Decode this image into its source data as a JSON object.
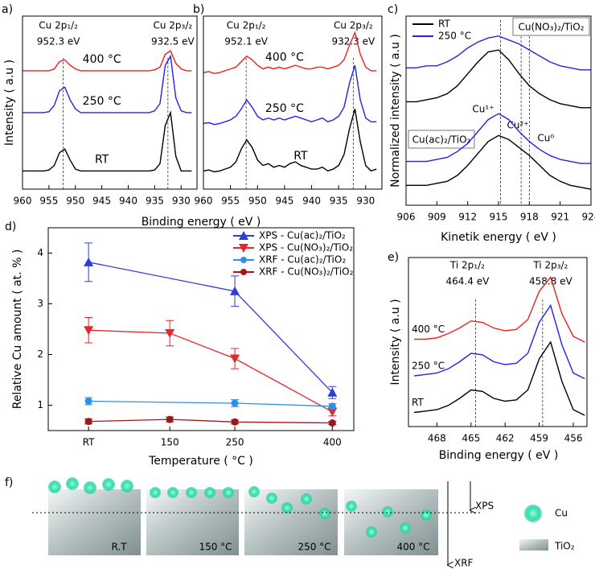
{
  "chart_data": [
    {
      "type": "line",
      "panel": "a)",
      "ylabel": "Intensity ( a.u )",
      "xlabel": "Binding energy ( eV )",
      "xlim": [
        960,
        927
      ],
      "xticks": [
        960,
        955,
        950,
        945,
        940,
        935,
        930
      ],
      "ylim": [
        0,
        9.5
      ],
      "x": [
        960,
        959,
        958,
        957,
        956,
        955,
        954,
        953,
        952,
        951,
        950,
        949,
        948,
        947,
        946,
        945,
        944,
        943,
        942,
        941,
        940,
        939,
        938,
        937,
        936,
        935,
        934,
        933,
        932,
        931,
        930,
        929,
        928
      ],
      "series": [
        {
          "name": "RT",
          "color": "#000000",
          "values": [
            1.0,
            1.0,
            1.0,
            1.0,
            1.0,
            1.05,
            1.3,
            2.0,
            2.2,
            1.6,
            1.1,
            1.0,
            1.0,
            1.0,
            1.0,
            1.0,
            1.0,
            1.0,
            1.0,
            1.0,
            1.0,
            1.0,
            1.0,
            1.0,
            1.0,
            1.05,
            1.4,
            3.5,
            4.2,
            1.8,
            1.0,
            1.0,
            1.0
          ]
        },
        {
          "name": "250 °C",
          "color": "#2323e8",
          "values": [
            4.2,
            4.2,
            4.2,
            4.2,
            4.2,
            4.25,
            4.6,
            5.4,
            5.6,
            4.9,
            4.4,
            4.2,
            4.2,
            4.2,
            4.2,
            4.2,
            4.2,
            4.2,
            4.2,
            4.2,
            4.2,
            4.2,
            4.2,
            4.2,
            4.2,
            4.3,
            4.7,
            6.8,
            7.3,
            5.0,
            4.3,
            4.2,
            4.2
          ]
        },
        {
          "name": "400 °C",
          "color": "#ee2020",
          "values": [
            6.5,
            6.5,
            6.5,
            6.5,
            6.5,
            6.5,
            6.6,
            7.0,
            7.1,
            6.8,
            6.6,
            6.5,
            6.5,
            6.5,
            6.5,
            6.5,
            6.5,
            6.5,
            6.5,
            6.5,
            6.5,
            6.5,
            6.5,
            6.5,
            6.5,
            6.55,
            6.7,
            7.4,
            7.6,
            6.9,
            6.6,
            6.5,
            6.5
          ]
        }
      ],
      "annotations": [
        {
          "x": 952.3,
          "title": "Cu 2p₁/₂",
          "label": "952.3 eV"
        },
        {
          "x": 932.5,
          "title": "Cu 2p₃/₂",
          "label": "932.5 eV"
        }
      ]
    },
    {
      "type": "line",
      "panel": "b)",
      "xlim": [
        960,
        927
      ],
      "xticks": [
        960,
        955,
        950,
        945,
        940,
        935,
        930
      ],
      "ylim": [
        0,
        9.5
      ],
      "x": [
        960,
        959,
        958,
        957,
        956,
        955,
        954,
        953,
        952,
        951,
        950,
        949,
        948,
        947,
        946,
        945,
        944,
        943,
        942,
        941,
        940,
        939,
        938,
        937,
        936,
        935,
        934,
        933,
        932,
        931,
        930,
        929,
        928
      ],
      "series": [
        {
          "name": "RT",
          "color": "#000000",
          "values": [
            1.0,
            1.05,
            0.95,
            1.0,
            1.1,
            1.2,
            1.5,
            2.2,
            2.7,
            2.3,
            1.6,
            1.3,
            1.4,
            1.2,
            1.3,
            1.2,
            1.4,
            1.5,
            1.3,
            1.2,
            1.1,
            1.1,
            1.2,
            1.0,
            1.1,
            1.3,
            1.9,
            3.3,
            4.4,
            2.6,
            1.3,
            1.0,
            1.1
          ]
        },
        {
          "name": "250 °C",
          "color": "#2323e8",
          "values": [
            3.6,
            3.65,
            3.55,
            3.6,
            3.7,
            3.8,
            4.0,
            4.4,
            4.9,
            4.5,
            4.0,
            3.8,
            3.9,
            3.8,
            3.9,
            3.8,
            3.9,
            4.0,
            3.9,
            3.8,
            3.7,
            3.8,
            3.9,
            3.7,
            3.8,
            4.0,
            4.5,
            5.8,
            6.8,
            4.9,
            3.9,
            3.7,
            3.7
          ]
        },
        {
          "name": "400 °C",
          "color": "#ee2020",
          "values": [
            6.4,
            6.45,
            6.35,
            6.4,
            6.5,
            6.6,
            6.7,
            7.0,
            7.3,
            7.1,
            6.8,
            6.6,
            6.7,
            6.6,
            6.7,
            6.6,
            6.7,
            6.8,
            6.7,
            6.6,
            6.6,
            6.7,
            6.7,
            6.6,
            6.7,
            6.8,
            7.1,
            7.9,
            8.6,
            7.4,
            6.7,
            6.5,
            6.5
          ]
        }
      ],
      "annotations": [
        {
          "x": 952.1,
          "title": "Cu 2p₁/₂",
          "label": "952.1 eV"
        },
        {
          "x": 932.3,
          "title": "Cu 2p₃/₂",
          "label": "932.3 eV"
        }
      ]
    },
    {
      "type": "line",
      "panel": "c)",
      "ylabel": "Normalized intensity ( a.u )",
      "xlabel": "Kinetik energy ( eV )",
      "xlim": [
        906,
        924
      ],
      "xticks": [
        906,
        909,
        912,
        915,
        918,
        921,
        924
      ],
      "ylim": [
        0,
        9.5
      ],
      "legend": "upper left",
      "x": [
        906,
        907,
        908,
        909,
        910,
        911,
        912,
        913,
        914,
        915,
        916,
        917,
        918,
        919,
        920,
        921,
        922,
        923,
        924
      ],
      "series": [
        {
          "name": "RT",
          "color": "#000000",
          "values": [
            1.0,
            1.0,
            1.0,
            1.1,
            1.2,
            1.5,
            2.0,
            2.6,
            3.2,
            3.5,
            3.3,
            2.9,
            2.5,
            2.0,
            1.5,
            1.2,
            1.0,
            0.9,
            0.8
          ]
        },
        {
          "name": "250 °C",
          "color": "#2323e8",
          "values": [
            2.2,
            2.2,
            2.2,
            2.3,
            2.4,
            2.7,
            3.1,
            3.7,
            4.3,
            4.6,
            4.3,
            3.7,
            3.2,
            2.8,
            2.5,
            2.3,
            2.2,
            2.1,
            2.1
          ]
        },
        {
          "name": "RT",
          "color": "#000000",
          "values": [
            5.2,
            5.2,
            5.3,
            5.4,
            5.6,
            6.0,
            6.6,
            7.2,
            7.7,
            7.8,
            7.3,
            6.6,
            6.0,
            5.6,
            5.3,
            5.1,
            5.0,
            4.9,
            4.9
          ]
        },
        {
          "name": "250 °C",
          "color": "#2323e8",
          "values": [
            6.9,
            6.9,
            7.0,
            7.0,
            7.2,
            7.5,
            7.9,
            8.2,
            8.4,
            8.5,
            8.3,
            8.1,
            7.8,
            7.5,
            7.2,
            7.0,
            6.9,
            6.8,
            6.8
          ]
        }
      ],
      "boxes": [
        "Cu(NO₃)₂/TiO₂",
        "Cu(ac)₂/TiO₂"
      ],
      "annotations": [
        {
          "x": 915.2,
          "label": "Cu¹⁺"
        },
        {
          "x": 917.2,
          "label": "Cu²⁺"
        },
        {
          "x": 918.0,
          "label": "Cu⁰"
        }
      ]
    },
    {
      "type": "line",
      "panel": "d)",
      "ylabel": "Relative Cu amount ( at. % )",
      "xlabel": "Temperature ( °C )",
      "xlim": [
        -37,
        433
      ],
      "xticks": [
        {
          "value": 25,
          "label": "RT"
        },
        150,
        250,
        400
      ],
      "ylim": [
        0.5,
        4.5
      ],
      "yticks": [
        1,
        2,
        3,
        4
      ],
      "legend": "upper right",
      "series": [
        {
          "name": "XPS - Cu(ac)₂/TiO₂",
          "color": "#2b3fd6",
          "marker": "triangle-up",
          "x": [
            25,
            250,
            400
          ],
          "values": [
            3.82,
            3.25,
            1.25
          ],
          "errors": [
            0.38,
            0.3,
            0.12
          ]
        },
        {
          "name": "XPS - Cu(NO₃)₂/TiO₂",
          "color": "#e8252a",
          "marker": "triangle-down",
          "x": [
            25,
            150,
            250,
            400
          ],
          "values": [
            2.48,
            2.42,
            1.92,
            0.87
          ],
          "errors": [
            0.25,
            0.25,
            0.2,
            0.08
          ]
        },
        {
          "name": "XRF - Cu(ac)₂/TiO₂",
          "color": "#2f8fe6",
          "marker": "circle",
          "x": [
            25,
            250,
            400
          ],
          "values": [
            1.08,
            1.04,
            0.98
          ],
          "errors": [
            0.07,
            0.07,
            0.05
          ]
        },
        {
          "name": "XRF - Cu(NO₃)₂/TiO₂",
          "color": "#a01818",
          "marker": "circle",
          "x": [
            25,
            150,
            250,
            400
          ],
          "values": [
            0.68,
            0.72,
            0.67,
            0.65
          ],
          "errors": [
            0.05,
            0.05,
            0.04,
            0.03
          ]
        }
      ]
    },
    {
      "type": "line",
      "panel": "e)",
      "ylabel": "Intensity ( a.u )",
      "xlabel": "Binding energy ( eV )",
      "xlim": [
        470.5,
        454.8
      ],
      "xticks": [
        468,
        465,
        462,
        459,
        456
      ],
      "ylim": [
        0,
        6
      ],
      "x": [
        470,
        469,
        468,
        467,
        466,
        465,
        464,
        463,
        462,
        461,
        460,
        459,
        458,
        457,
        456,
        455
      ],
      "series": [
        {
          "name": "RT",
          "color": "#000000",
          "values": [
            0.5,
            0.55,
            0.6,
            0.75,
            1.0,
            1.3,
            1.25,
            1.0,
            0.9,
            0.95,
            1.3,
            2.4,
            3.0,
            1.6,
            0.6,
            0.4
          ]
        },
        {
          "name": "250 °C",
          "color": "#2323e8",
          "values": [
            1.8,
            1.85,
            1.9,
            2.05,
            2.3,
            2.6,
            2.55,
            2.3,
            2.2,
            2.25,
            2.6,
            3.7,
            4.3,
            2.9,
            1.9,
            1.7
          ]
        },
        {
          "name": "400 °C",
          "color": "#ee2020",
          "values": [
            3.1,
            3.1,
            3.15,
            3.3,
            3.5,
            3.75,
            3.7,
            3.5,
            3.4,
            3.45,
            3.8,
            4.8,
            5.3,
            4.0,
            3.2,
            3.0
          ]
        }
      ],
      "annotations": [
        {
          "x": 464.6,
          "title": "Ti 2p₁/₂",
          "label": "464.4 eV"
        },
        {
          "x": 458.7,
          "title": "Ti 2p₃/₂",
          "label": "458.8 eV"
        }
      ]
    }
  ],
  "diagram": {
    "panel": "f)",
    "stages": [
      "R.T",
      "150 °C",
      "250 °C",
      "400 °C"
    ],
    "probes": [
      "XPS",
      "XRF"
    ],
    "legend": [
      "Cu",
      "TiO₂"
    ]
  }
}
